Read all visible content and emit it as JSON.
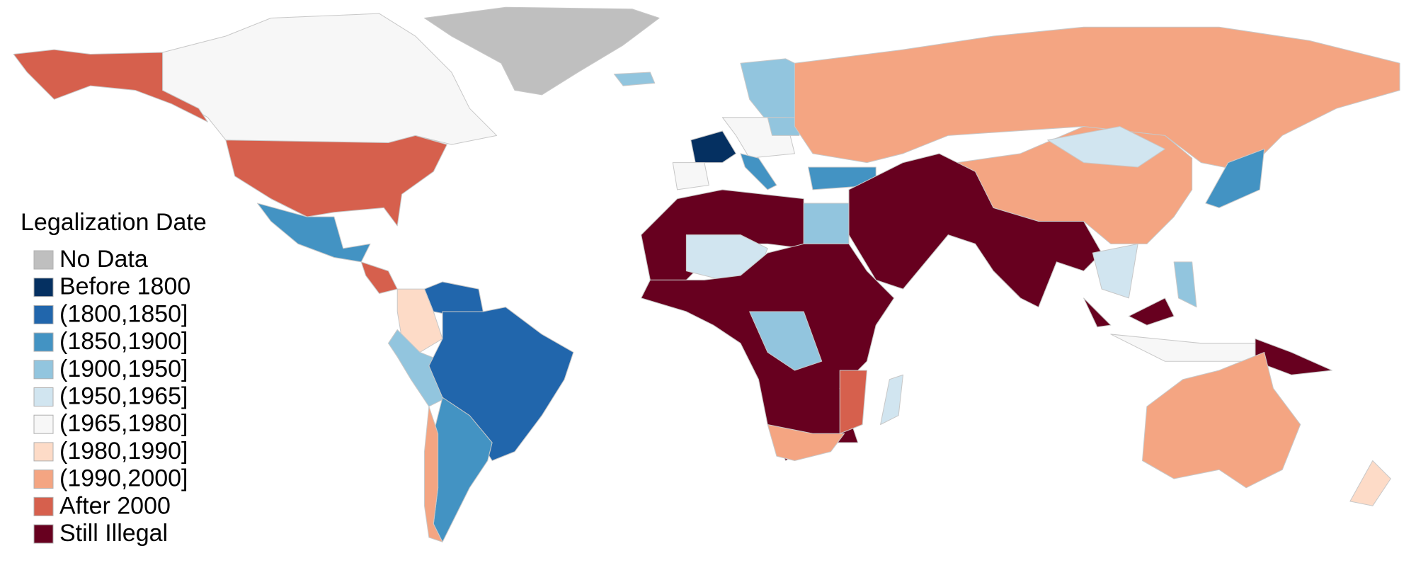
{
  "legend": {
    "title": "Legalization Date",
    "items": [
      {
        "label": "No Data",
        "color": "#bfbfbf"
      },
      {
        "label": "Before 1800",
        "color": "#053061"
      },
      {
        "label": "(1800,1850]",
        "color": "#2166ac"
      },
      {
        "label": "(1850,1900]",
        "color": "#4393c3"
      },
      {
        "label": "(1900,1950]",
        "color": "#92c5de"
      },
      {
        "label": "(1950,1965]",
        "color": "#d1e5f0"
      },
      {
        "label": "(1965,1980]",
        "color": "#f7f7f7"
      },
      {
        "label": "(1980,1990]",
        "color": "#fddbc7"
      },
      {
        "label": "(1990,2000]",
        "color": "#f4a582"
      },
      {
        "label": "After 2000",
        "color": "#d6604d"
      },
      {
        "label": "Still Illegal",
        "color": "#67001f"
      }
    ]
  }
}
